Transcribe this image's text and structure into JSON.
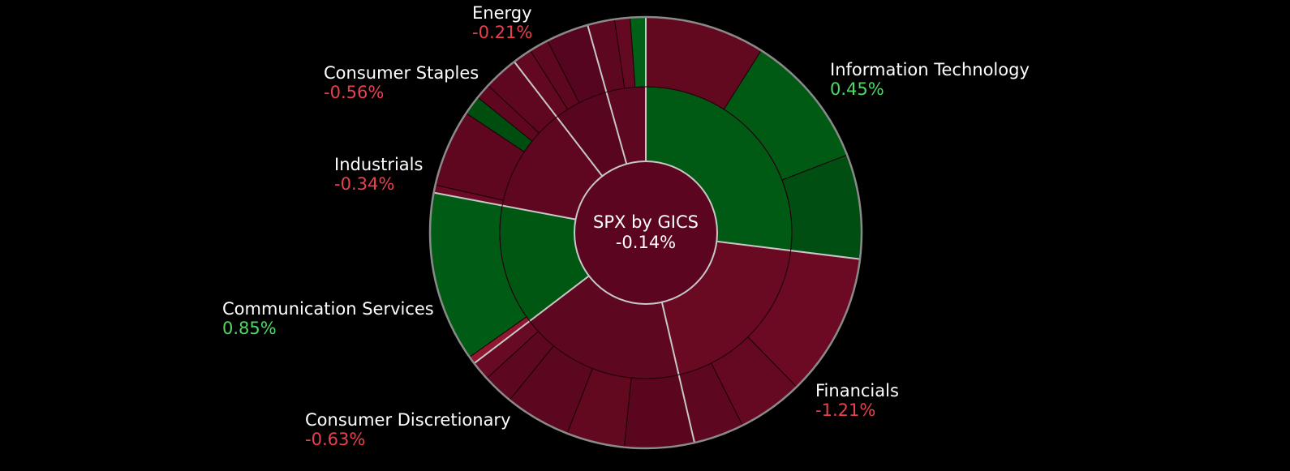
{
  "chart_data": {
    "type": "sunburst",
    "center": {
      "title": "SPX by GICS",
      "change": "-0.14%",
      "change_value": -0.14
    },
    "colors": {
      "positive_text": "#4cd964",
      "negative_text": "#e8404f",
      "positive_fill": "#005712",
      "negative_fill": "#600720",
      "center_fill": "#5c0520",
      "separator": "#c8c8c8"
    },
    "sectors": [
      {
        "name": "Information Technology",
        "change": "0.45%",
        "value": 0.45,
        "weight": 93,
        "color": "#005a14",
        "children": [
          {
            "weight": 31,
            "color": "#62081f"
          },
          {
            "weight": 35,
            "color": "#005a14"
          },
          {
            "weight": 27,
            "color": "#004e11"
          }
        ]
      },
      {
        "name": "Financials",
        "change": "-1.21%",
        "value": -1.21,
        "weight": 67,
        "color": "#6a0a22",
        "children": [
          {
            "weight": 37,
            "color": "#6c0a23"
          },
          {
            "weight": 17,
            "color": "#650922"
          },
          {
            "weight": 13,
            "color": "#5e0720"
          }
        ]
      },
      {
        "name": "Consumer Discretionary",
        "change": "-0.63%",
        "value": -0.63,
        "weight": 63,
        "color": "#5e0720",
        "children": [
          {
            "weight": 18,
            "color": "#5a061e"
          },
          {
            "weight": 15,
            "color": "#62081f"
          },
          {
            "weight": 17,
            "color": "#5c0720"
          },
          {
            "weight": 8,
            "color": "#5e0720"
          },
          {
            "weight": 5,
            "color": "#690a24"
          }
        ]
      },
      {
        "name": "Communication Services",
        "change": "0.85%",
        "value": 0.85,
        "weight": 46,
        "color": "#005712",
        "children": [
          {
            "weight": 2,
            "color": "#8f1730"
          },
          {
            "weight": 44,
            "color": "#005c14"
          }
        ]
      },
      {
        "name": "Industrials",
        "change": "-0.34%",
        "value": -0.34,
        "weight": 40,
        "color": "#5f0720",
        "children": [
          {
            "weight": 2,
            "color": "#6b0a24"
          },
          {
            "weight": 20,
            "color": "#600720"
          },
          {
            "weight": 5,
            "color": "#004d10"
          },
          {
            "weight": 4,
            "color": "#600720"
          },
          {
            "weight": 9,
            "color": "#5f0720"
          }
        ]
      },
      {
        "name": "Consumer Staples",
        "change": "-0.56%",
        "value": -0.56,
        "weight": 21,
        "color": "#580620",
        "children": [
          {
            "weight": 5,
            "color": "#620820"
          },
          {
            "weight": 5,
            "color": "#5d0720"
          },
          {
            "weight": 11,
            "color": "#560520"
          }
        ]
      },
      {
        "name": "Energy",
        "change": "-0.21%",
        "value": -0.21,
        "weight": 15,
        "color": "#5e0720",
        "children": [
          {
            "weight": 7,
            "color": "#5e0720"
          },
          {
            "weight": 4,
            "color": "#650922"
          },
          {
            "weight": 4,
            "color": "#006016"
          }
        ]
      }
    ]
  }
}
